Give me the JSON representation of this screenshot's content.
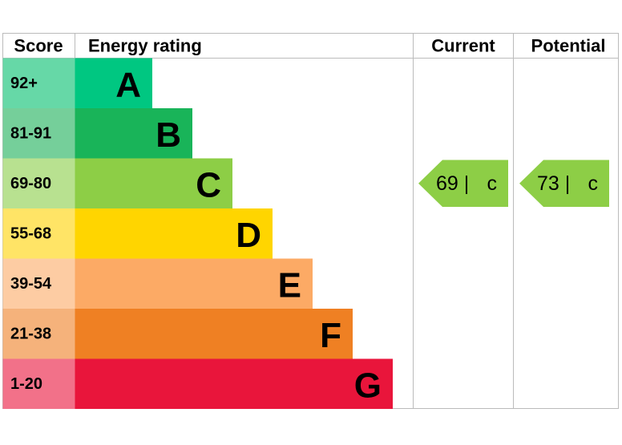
{
  "header": {
    "score": "Score",
    "rating": "Energy rating",
    "current": "Current",
    "potential": "Potential"
  },
  "bands": [
    {
      "score": "92+",
      "letter": "A"
    },
    {
      "score": "81-91",
      "letter": "B"
    },
    {
      "score": "69-80",
      "letter": "C"
    },
    {
      "score": "55-68",
      "letter": "D"
    },
    {
      "score": "39-54",
      "letter": "E"
    },
    {
      "score": "21-38",
      "letter": "F"
    },
    {
      "score": "1-20",
      "letter": "G"
    }
  ],
  "current": {
    "value": "69 |",
    "letter": "c"
  },
  "potential": {
    "value": "73 |",
    "letter": "c"
  }
}
